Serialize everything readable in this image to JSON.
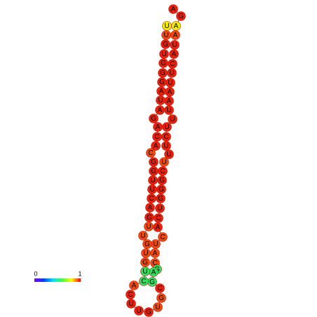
{
  "nodes": [
    {
      "label": "A",
      "color": "#e8200c"
    },
    {
      "label": "G",
      "color": "#e8200c"
    },
    {
      "label": "A",
      "color": "#f0f000"
    },
    {
      "label": "A",
      "color": "#ee4a10"
    },
    {
      "label": "U",
      "color": "#e8200c"
    },
    {
      "label": "A",
      "color": "#e8200c"
    },
    {
      "label": "C",
      "color": "#e8200c"
    },
    {
      "label": "U",
      "color": "#e8200c"
    },
    {
      "label": "U",
      "color": "#e8200c"
    },
    {
      "label": "A",
      "color": "#e8200c"
    },
    {
      "label": "A",
      "color": "#e8200c"
    },
    {
      "label": "U",
      "color": "#e8200c"
    },
    {
      "label": "U",
      "color": "#e8200c"
    },
    {
      "label": "U",
      "color": "#e8200c"
    },
    {
      "label": "C",
      "color": "#e8200c"
    },
    {
      "label": "U",
      "color": "#e8200c"
    },
    {
      "label": "U",
      "color": "#e8200c"
    },
    {
      "label": "U",
      "color": "#ee4a10"
    },
    {
      "label": "C",
      "color": "#e8200c"
    },
    {
      "label": "G",
      "color": "#e8200c"
    },
    {
      "label": "G",
      "color": "#e8200c"
    },
    {
      "label": "G",
      "color": "#e8200c"
    },
    {
      "label": "U",
      "color": "#e8200c"
    },
    {
      "label": "C",
      "color": "#e8200c"
    },
    {
      "label": "A",
      "color": "#e8200c"
    },
    {
      "label": "C",
      "color": "#ee4a10"
    },
    {
      "label": "U",
      "color": "#ee4a10"
    },
    {
      "label": "A",
      "color": "#ee4a10"
    },
    {
      "label": "C",
      "color": "#ee4a10"
    },
    {
      "label": "G",
      "color": "#30e060"
    },
    {
      "label": "A",
      "color": "#30e060"
    },
    {
      "label": "G",
      "color": "#30e060"
    },
    {
      "label": "C",
      "color": "#e8200c"
    },
    {
      "label": "G",
      "color": "#ee4a10"
    },
    {
      "label": "U",
      "color": "#ee4a10"
    },
    {
      "label": "G",
      "color": "#e8200c"
    },
    {
      "label": "U",
      "color": "#e8200c"
    },
    {
      "label": "U",
      "color": "#e8200c"
    },
    {
      "label": "C",
      "color": "#e8200c"
    },
    {
      "label": "A",
      "color": "#ee4a10"
    },
    {
      "label": "C",
      "color": "#30e060"
    },
    {
      "label": "U",
      "color": "#30e060"
    },
    {
      "label": "G",
      "color": "#ee4a10"
    },
    {
      "label": "U",
      "color": "#ee4a10"
    },
    {
      "label": "G",
      "color": "#ee4a10"
    },
    {
      "label": "U",
      "color": "#ee4a10"
    },
    {
      "label": "U",
      "color": "#ee4a10"
    },
    {
      "label": "G",
      "color": "#e8200c"
    },
    {
      "label": "A",
      "color": "#e8200c"
    },
    {
      "label": "C",
      "color": "#e8200c"
    },
    {
      "label": "U",
      "color": "#e8200c"
    },
    {
      "label": "U",
      "color": "#e8200c"
    },
    {
      "label": "G",
      "color": "#e8200c"
    },
    {
      "label": "G",
      "color": "#e8200c"
    },
    {
      "label": "C",
      "color": "#ee4a10"
    },
    {
      "label": "A",
      "color": "#e8200c"
    },
    {
      "label": "C",
      "color": "#e8200c"
    },
    {
      "label": "A",
      "color": "#e8200c"
    },
    {
      "label": "G",
      "color": "#e8200c"
    },
    {
      "label": "A",
      "color": "#e8200c"
    },
    {
      "label": "U",
      "color": "#e8200c"
    },
    {
      "label": "A",
      "color": "#e8200c"
    },
    {
      "label": "G",
      "color": "#e8200c"
    },
    {
      "label": "G",
      "color": "#e8200c"
    },
    {
      "label": "G",
      "color": "#e8200c"
    },
    {
      "label": "U",
      "color": "#e8200c"
    },
    {
      "label": "G",
      "color": "#e8200c"
    },
    {
      "label": "U",
      "color": "#ee4a10"
    },
    {
      "label": "U",
      "color": "#f0f000"
    }
  ],
  "colorbar": {
    "min_label": "0",
    "max_label": "1"
  }
}
